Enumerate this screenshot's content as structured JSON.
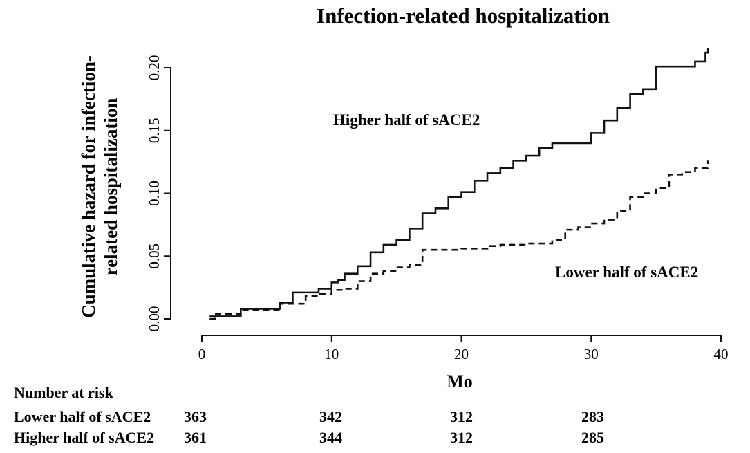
{
  "chart_data": {
    "type": "line",
    "title": "Infection-related hospitalization",
    "xlabel": "Mo",
    "ylabel_lines": [
      "Cumulative hazard for infection-",
      "related hospitalization"
    ],
    "xlim": [
      0,
      40
    ],
    "ylim": [
      0,
      0.2
    ],
    "x_ticks": [
      0,
      10,
      20,
      30,
      40
    ],
    "x_tick_labels": [
      "0",
      "10",
      "20",
      "30",
      "40"
    ],
    "y_ticks": [
      0,
      0.05,
      0.1,
      0.15,
      0.2
    ],
    "y_tick_labels": [
      "0.00",
      "0.05",
      "0.10",
      "0.15",
      "0.20"
    ],
    "grid": false,
    "series": [
      {
        "name": "Higher half of sACE2",
        "style": "solid",
        "annotation": "Higher half of sACE2",
        "x": [
          0.6,
          1.5,
          3,
          5,
          6,
          7,
          8,
          9,
          10,
          10.5,
          11,
          11.5,
          12,
          13,
          14,
          15,
          16,
          17,
          18,
          19,
          20,
          21,
          22,
          23,
          24,
          25,
          26,
          27,
          28,
          29,
          30,
          31,
          32,
          33,
          34,
          35,
          36,
          37,
          38,
          38.8,
          39
        ],
        "y": [
          0.002,
          0.002,
          0.008,
          0.008,
          0.013,
          0.021,
          0.021,
          0.024,
          0.029,
          0.031,
          0.036,
          0.036,
          0.042,
          0.053,
          0.059,
          0.063,
          0.072,
          0.084,
          0.088,
          0.097,
          0.101,
          0.11,
          0.116,
          0.12,
          0.126,
          0.13,
          0.136,
          0.14,
          0.14,
          0.14,
          0.148,
          0.158,
          0.168,
          0.179,
          0.183,
          0.201,
          0.201,
          0.201,
          0.205,
          0.212,
          0.216
        ]
      },
      {
        "name": "Lower half of sACE2",
        "style": "dashed",
        "annotation": "Lower half of sACE2",
        "x": [
          0.6,
          1,
          3,
          6,
          8,
          9,
          10,
          11,
          12,
          13,
          14,
          15,
          16,
          17,
          18,
          20,
          22,
          23,
          25,
          27,
          28,
          29,
          30,
          31,
          32,
          33,
          34,
          35,
          36,
          37,
          38,
          39
        ],
        "y": [
          0.0,
          0.004,
          0.007,
          0.012,
          0.018,
          0.02,
          0.023,
          0.024,
          0.03,
          0.036,
          0.038,
          0.041,
          0.043,
          0.055,
          0.055,
          0.056,
          0.058,
          0.059,
          0.06,
          0.063,
          0.071,
          0.073,
          0.076,
          0.079,
          0.086,
          0.097,
          0.1,
          0.104,
          0.115,
          0.117,
          0.12,
          0.126
        ]
      }
    ]
  },
  "risk_table": {
    "header": "Number at risk",
    "rows": [
      {
        "label": "Lower half of sACE2",
        "values": [
          "363",
          "342",
          "312",
          "283"
        ]
      },
      {
        "label": "Higher half of sACE2",
        "values": [
          "361",
          "344",
          "312",
          "285"
        ]
      }
    ]
  }
}
